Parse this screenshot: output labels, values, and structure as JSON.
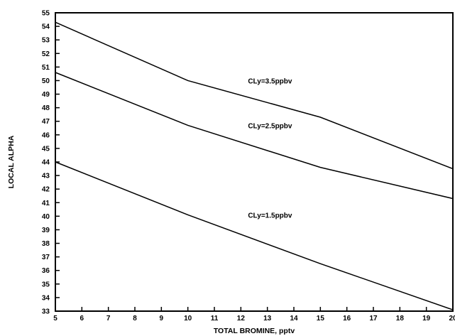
{
  "chart_data": {
    "type": "line",
    "title": "",
    "xlabel": "TOTAL BROMINE, pptv",
    "ylabel": "LOCAL ALPHA",
    "xlim": [
      5,
      20
    ],
    "ylim": [
      33,
      55
    ],
    "x_ticks": [
      "5",
      "6",
      "7",
      "8",
      "9",
      "10",
      "11",
      "12",
      "13",
      "14",
      "15",
      "16",
      "17",
      "18",
      "19",
      "20"
    ],
    "y_ticks": [
      "33",
      "34",
      "35",
      "36",
      "37",
      "38",
      "39",
      "40",
      "41",
      "42",
      "43",
      "44",
      "45",
      "46",
      "47",
      "48",
      "49",
      "50",
      "51",
      "52",
      "53",
      "54",
      "55"
    ],
    "grid": false,
    "legend": "none",
    "series": [
      {
        "name": "CLy=3.5ppbv",
        "x": [
          5,
          10,
          15,
          20
        ],
        "y": [
          54.3,
          50.0,
          47.3,
          43.5
        ],
        "label_at": [
          13.1,
          49.8
        ]
      },
      {
        "name": "CLy=2.5ppbv",
        "x": [
          5,
          10,
          15,
          20
        ],
        "y": [
          50.6,
          46.7,
          43.6,
          41.3
        ],
        "label_at": [
          13.1,
          46.5
        ]
      },
      {
        "name": "CLy=1.5ppbv",
        "x": [
          5,
          10,
          15,
          20
        ],
        "y": [
          44.0,
          40.1,
          36.5,
          33.1
        ],
        "label_at": [
          13.1,
          39.9
        ]
      }
    ]
  }
}
